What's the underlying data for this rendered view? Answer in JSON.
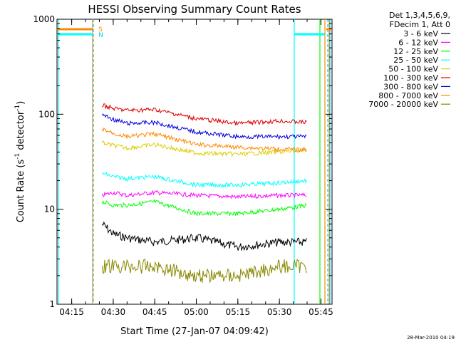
{
  "chart_data": {
    "type": "line",
    "title": "HESSI Observing Summary Count Rates",
    "xlabel": "Start Time (27-Jan-07 04:09:42)",
    "ylabel_main": "Count Rate (s",
    "ylabel_sup1": "-1",
    "ylabel_mid": " detector",
    "ylabel_sup2": "-1",
    "ylabel_end": ")",
    "x_range_minutes": [
      "04:09:42",
      "05:49:00"
    ],
    "y_log_scale": true,
    "ylim": [
      1,
      1000
    ],
    "x_ticks": [
      "04:15",
      "04:30",
      "04:45",
      "05:00",
      "05:15",
      "05:30",
      "05:45"
    ],
    "y_ticks": [
      "1",
      "10",
      "100",
      "1000"
    ],
    "legend": {
      "placement": "top-right",
      "header1": "Det 1,3,4,5,6,9,",
      "header2": "FDecim 1, Att 0",
      "entries": [
        {
          "label": "3 - 6 keV",
          "color": "#000000"
        },
        {
          "label": "6 - 12 keV",
          "color": "#ff00ff"
        },
        {
          "label": "12 - 25 keV",
          "color": "#00ff00"
        },
        {
          "label": "25 - 50 keV",
          "color": "#00ffff"
        },
        {
          "label": "50 - 100 keV",
          "color": "#ddcc00"
        },
        {
          "label": "100 - 300 keV",
          "color": "#dd0000"
        },
        {
          "label": "300 - 800 keV",
          "color": "#0000dd"
        },
        {
          "label": "800 - 7000 keV",
          "color": "#ff8800"
        },
        {
          "label": "7000 - 20000 keV",
          "color": "#888800"
        }
      ]
    },
    "flags": [
      {
        "label": "S",
        "color": "#ff8800"
      },
      {
        "label": "N",
        "color": "#00ccff"
      }
    ],
    "series": [
      {
        "name": "3 - 6 keV",
        "color": "#000000",
        "x": [
          "04:26",
          "04:30",
          "04:35",
          "04:45",
          "05:00",
          "05:15",
          "05:30",
          "05:40"
        ],
        "values": [
          7,
          5.5,
          5,
          4.5,
          5,
          4,
          4.5,
          4.5
        ]
      },
      {
        "name": "6 - 12 keV",
        "color": "#ff00ff",
        "x": [
          "04:26",
          "04:30",
          "04:35",
          "04:45",
          "05:00",
          "05:15",
          "05:30",
          "05:40"
        ],
        "values": [
          14,
          15,
          14,
          15,
          14,
          13.5,
          14,
          14
        ]
      },
      {
        "name": "12 - 25 keV",
        "color": "#00ff00",
        "x": [
          "04:26",
          "04:30",
          "04:35",
          "04:45",
          "05:00",
          "05:15",
          "05:30",
          "05:40"
        ],
        "values": [
          12,
          11,
          11,
          12,
          9,
          9,
          10,
          11
        ]
      },
      {
        "name": "25 - 50 keV",
        "color": "#00ffff",
        "x": [
          "04:26",
          "04:30",
          "04:35",
          "04:45",
          "05:00",
          "05:15",
          "05:30",
          "05:40"
        ],
        "values": [
          24,
          22,
          21,
          22,
          18,
          18,
          19,
          20
        ]
      },
      {
        "name": "50 - 100 keV",
        "color": "#ddcc00",
        "x": [
          "04:26",
          "04:30",
          "04:35",
          "04:45",
          "05:00",
          "05:15",
          "05:30",
          "05:40"
        ],
        "values": [
          50,
          47,
          44,
          48,
          39,
          38,
          40,
          42
        ]
      },
      {
        "name": "100 - 300 keV",
        "color": "#dd0000",
        "x": [
          "04:26",
          "04:30",
          "04:35",
          "04:45",
          "05:00",
          "05:15",
          "05:30",
          "05:40"
        ],
        "values": [
          125,
          115,
          110,
          112,
          90,
          80,
          85,
          82
        ]
      },
      {
        "name": "300 - 800 keV",
        "color": "#0000dd",
        "x": [
          "04:26",
          "04:30",
          "04:35",
          "04:45",
          "05:00",
          "05:15",
          "05:30",
          "05:40"
        ],
        "values": [
          100,
          88,
          80,
          82,
          65,
          58,
          58,
          58
        ]
      },
      {
        "name": "800 - 7000 keV",
        "color": "#ff8800",
        "x": [
          "04:26",
          "04:30",
          "04:35",
          "04:45",
          "05:00",
          "05:15",
          "05:30",
          "05:40"
        ],
        "values": [
          70,
          63,
          58,
          62,
          48,
          45,
          43,
          42
        ]
      },
      {
        "name": "7000 - 20000 keV",
        "color": "#888800",
        "x": [
          "04:26",
          "04:30",
          "04:35",
          "04:45",
          "05:00",
          "05:15",
          "05:30",
          "05:40"
        ],
        "values": [
          2.5,
          2.5,
          2.5,
          2.5,
          2.0,
          2.0,
          2.5,
          2.5
        ]
      }
    ],
    "timestamp": "28-Mar-2010 04:19"
  }
}
